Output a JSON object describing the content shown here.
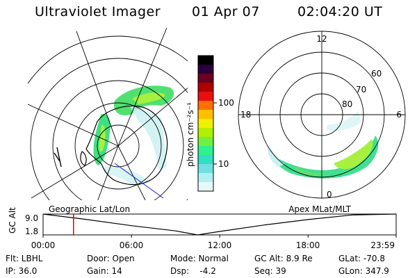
{
  "header": {
    "title": "Ultraviolet Imager",
    "date": "01 Apr 07",
    "time": "02:04:20 UT"
  },
  "panels": {
    "left_label": "Geographic Lat/Lon",
    "right_label": "Apex MLat/MLT"
  },
  "colorbar": {
    "unit_label": "photon cm⁻²s⁻¹",
    "ticks": [
      "100",
      "10"
    ],
    "colors": [
      "#000000",
      "#2a003a",
      "#6a0020",
      "#b00000",
      "#e81010",
      "#ff7000",
      "#ffc000",
      "#f0f000",
      "#b0f000",
      "#70f040",
      "#30f090",
      "#30e0c0",
      "#70e0e0",
      "#b0f0f0",
      "#e8f8f8"
    ]
  },
  "polar_plot": {
    "mlt_labels": [
      "12",
      "18",
      "6",
      "0"
    ],
    "lat_labels": [
      "60",
      "70",
      "80"
    ]
  },
  "timeline": {
    "y_axis_label": "GC Alt",
    "y_ticks": [
      "9.0",
      "1.8"
    ],
    "x_ticks": [
      "00:00",
      "06:00",
      "12:00",
      "18:00",
      "23:59"
    ],
    "marker_time": "02:04",
    "marker_color": "#dd0000"
  },
  "chart_data": {
    "type": "line",
    "x": [
      "00:00",
      "03:00",
      "06:00",
      "09:00",
      "10:30",
      "12:00",
      "15:00",
      "18:00",
      "21:00",
      "23:59"
    ],
    "series": [
      {
        "values": [
          9.0,
          7.1,
          5.0,
          3.2,
          1.8,
          3.0,
          5.2,
          7.1,
          8.7,
          9.0
        ]
      }
    ],
    "ylim": [
      1.8,
      9.0
    ]
  },
  "info": {
    "filter_label": "Flt: LBHL",
    "door_label": "Door: Open",
    "mode_label": "Mode: Normal",
    "gcalt_label": "GC Alt: 8.9 Re",
    "glat_label": "GLat: -70.8",
    "ip_label": "IP: 36.0",
    "gain_label": "Gain: 14",
    "dsp_label": "Dsp:    -4.2",
    "seq_label": "Seq: 39",
    "glon_label": "GLon: 347.9"
  }
}
